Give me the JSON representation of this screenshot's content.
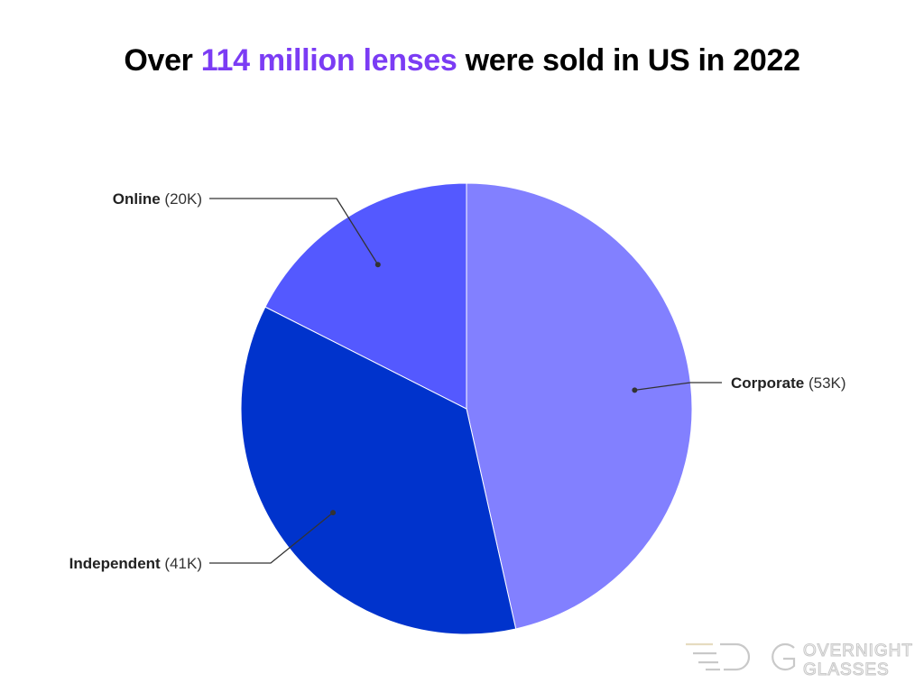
{
  "title": {
    "prefix": "Over ",
    "highlight": "114 million lenses",
    "suffix": " were sold in US in 2022",
    "highlight_color": "#7b3cf4"
  },
  "chart_data": {
    "type": "pie",
    "title": "Over 114 million lenses were sold in US in 2022",
    "unit": "K",
    "slices": [
      {
        "label": "Corporate",
        "value": 53,
        "value_label": "(53K)",
        "color": "#8280ff"
      },
      {
        "label": "Independent",
        "value": 41,
        "value_label": "(41K)",
        "color": "#0033cc"
      },
      {
        "label": "Online",
        "value": 20,
        "value_label": "(20K)",
        "color": "#5459ff"
      }
    ]
  },
  "logo": {
    "line1": "OVERNIGHT",
    "line2": "GLASSES"
  }
}
